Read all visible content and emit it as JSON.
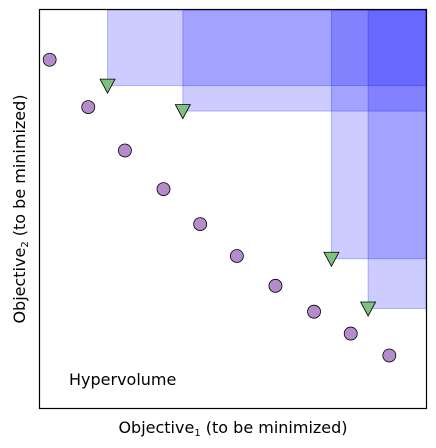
{
  "chart_data": {
    "type": "scatter",
    "title": "",
    "xlabel": "Objective",
    "xlabel_subscript": "1",
    "xlabel_suffix": " (to be minimized)",
    "ylabel": "Objective",
    "ylabel_subscript": "2",
    "ylabel_suffix": " (to be minimized)",
    "annotation": "Hypervolume",
    "xlim": [
      0,
      100
    ],
    "ylim": [
      0,
      100
    ],
    "axes_ticks": false,
    "grid": false,
    "reference_point": [
      100,
      100
    ],
    "series": [
      {
        "marker": "circle",
        "color": "#b48ccc",
        "points": [
          [
            2.5,
            87.5
          ],
          [
            12.5,
            75.6
          ],
          [
            22,
            64.7
          ],
          [
            32,
            55
          ],
          [
            41.5,
            46.2
          ],
          [
            51,
            38.2
          ],
          [
            61,
            30.7
          ],
          [
            71,
            24.2
          ],
          [
            80.5,
            18.7
          ],
          [
            90.5,
            13.2
          ]
        ]
      },
      {
        "marker": "triangle-down",
        "color": "#80c080",
        "points": [
          [
            17.5,
            81
          ],
          [
            37,
            74.6
          ],
          [
            75.5,
            37.5
          ],
          [
            85,
            25
          ]
        ]
      }
    ],
    "hypervolume_fill": "#0000ff",
    "hypervolume_alpha": 0.2
  }
}
